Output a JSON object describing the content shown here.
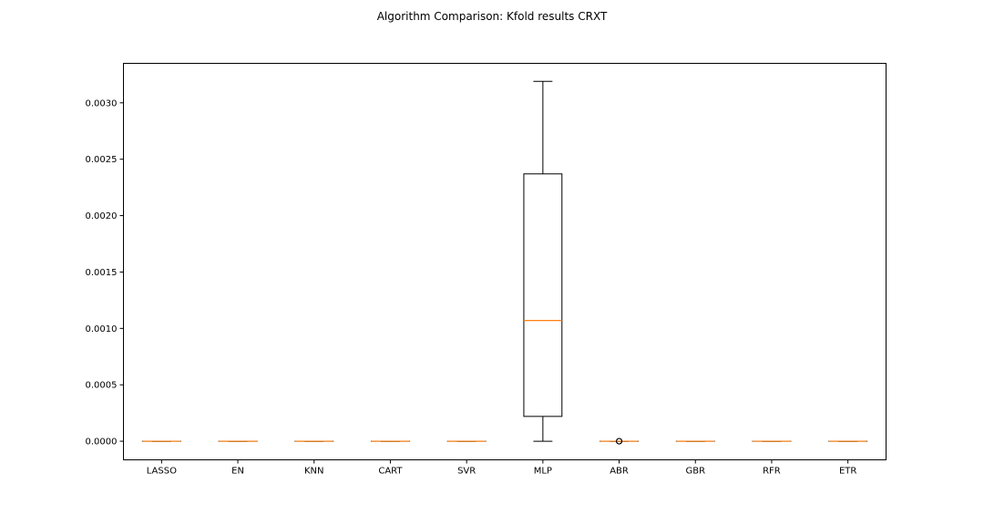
{
  "chart_data": {
    "type": "box",
    "title": "Algorithm Comparison: Kfold results CRXT",
    "xlabel": "",
    "ylabel": "",
    "ylim": [
      -0.000165,
      0.00335
    ],
    "yticks": [
      "0.0000",
      "0.0005",
      "0.0010",
      "0.0015",
      "0.0020",
      "0.0025",
      "0.0030"
    ],
    "categories": [
      "LASSO",
      "EN",
      "KNN",
      "CART",
      "SVR",
      "MLP",
      "ABR",
      "GBR",
      "RFR",
      "ETR"
    ],
    "boxes": [
      {
        "label": "LASSO",
        "whisker_low": 0,
        "q1": 0,
        "median": 0,
        "q3": 0,
        "whisker_high": 0,
        "outliers": []
      },
      {
        "label": "EN",
        "whisker_low": 0,
        "q1": 0,
        "median": 0,
        "q3": 0,
        "whisker_high": 0,
        "outliers": []
      },
      {
        "label": "KNN",
        "whisker_low": 0,
        "q1": 0,
        "median": 0,
        "q3": 0,
        "whisker_high": 0,
        "outliers": []
      },
      {
        "label": "CART",
        "whisker_low": 0,
        "q1": 0,
        "median": 0,
        "q3": 0,
        "whisker_high": 0,
        "outliers": []
      },
      {
        "label": "SVR",
        "whisker_low": 0,
        "q1": 0,
        "median": 0,
        "q3": 0,
        "whisker_high": 0,
        "outliers": []
      },
      {
        "label": "MLP",
        "whisker_low": 0,
        "q1": 0.00022,
        "median": 0.00107,
        "q3": 0.00237,
        "whisker_high": 0.00319,
        "outliers": []
      },
      {
        "label": "ABR",
        "whisker_low": 0,
        "q1": 0,
        "median": 0,
        "q3": 0,
        "whisker_high": 0,
        "outliers": [
          0.0
        ]
      },
      {
        "label": "GBR",
        "whisker_low": 0,
        "q1": 0,
        "median": 0,
        "q3": 0,
        "whisker_high": 0,
        "outliers": []
      },
      {
        "label": "RFR",
        "whisker_low": 0,
        "q1": 0,
        "median": 0,
        "q3": 0,
        "whisker_high": 0,
        "outliers": []
      },
      {
        "label": "ETR",
        "whisker_low": 0,
        "q1": 0,
        "median": 0,
        "q3": 0,
        "whisker_high": 0,
        "outliers": []
      }
    ],
    "colors": {
      "box": "#000000",
      "median": "#ff7f0e",
      "background": "#ffffff"
    },
    "grid": false,
    "legend": "none"
  }
}
